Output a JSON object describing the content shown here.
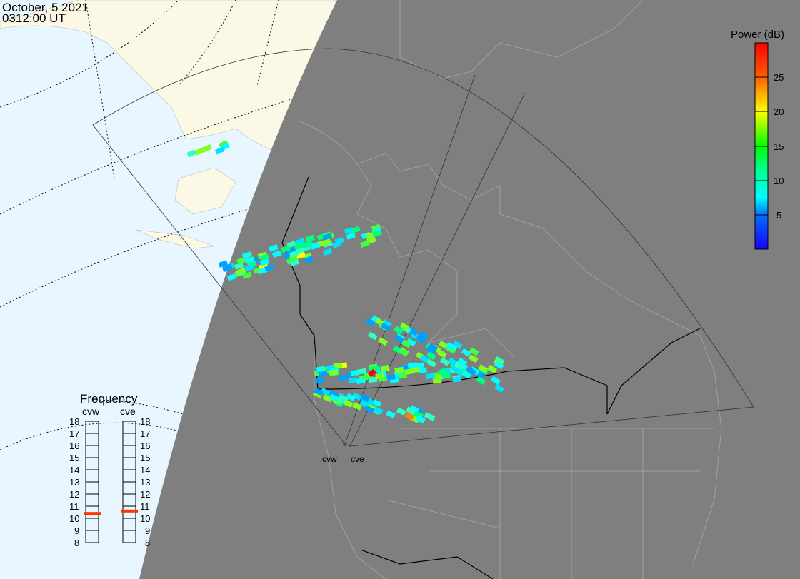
{
  "header": {
    "date": "October, 5 2021",
    "time": "0312:00 UT"
  },
  "colorbar": {
    "title": "Power (dB)",
    "ticks": [
      "25",
      "20",
      "15",
      "10",
      "5"
    ],
    "range": [
      0,
      30
    ],
    "colors": [
      "#1a00ff",
      "#0070ff",
      "#00ffff",
      "#00ff40",
      "#60e000",
      "#ffff00",
      "#ff8000",
      "#ff0000"
    ]
  },
  "frequency": {
    "title": "Frequency",
    "unit_range": [
      8,
      18
    ],
    "levels": [
      "18",
      "17",
      "16",
      "15",
      "14",
      "13",
      "12",
      "11",
      "10",
      "9",
      "8"
    ],
    "radars": [
      {
        "name": "cvw",
        "value": 10.4
      },
      {
        "name": "cve",
        "value": 10.6
      }
    ],
    "marker_color": "#ff3300"
  },
  "radars": {
    "west": "cvw",
    "east": "cve"
  },
  "colors": {
    "ocean": "#e8f6ff",
    "land_day": "#fbf8e6",
    "night": "#7f7f7f"
  }
}
